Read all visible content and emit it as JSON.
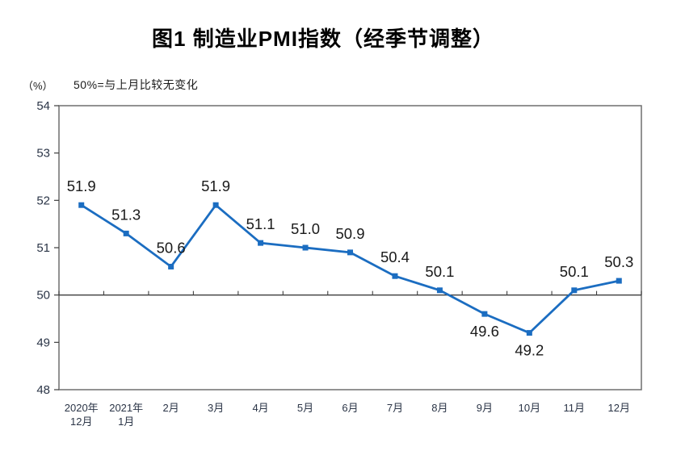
{
  "chart_data": {
    "type": "line",
    "title": "图1 制造业PMI指数（经季节调整）",
    "unit_label": "（%）",
    "subtitle": "50%=与上月比较无变化",
    "categories": [
      [
        "2020年",
        "12月"
      ],
      [
        "2021年",
        "1月"
      ],
      [
        "2月"
      ],
      [
        "3月"
      ],
      [
        "4月"
      ],
      [
        "5月"
      ],
      [
        "6月"
      ],
      [
        "7月"
      ],
      [
        "8月"
      ],
      [
        "9月"
      ],
      [
        "10月"
      ],
      [
        "11月"
      ],
      [
        "12月"
      ]
    ],
    "values": [
      51.9,
      51.3,
      50.6,
      51.9,
      51.1,
      51.0,
      50.9,
      50.4,
      50.1,
      49.6,
      49.2,
      50.1,
      50.3
    ],
    "labels": [
      "51.9",
      "51.3",
      "50.6",
      "51.9",
      "51.1",
      "51.0",
      "50.9",
      "50.4",
      "50.1",
      "49.6",
      "49.2",
      "50.1",
      "50.3"
    ],
    "label_positions": [
      "above",
      "above",
      "above",
      "above",
      "above",
      "above",
      "above",
      "above",
      "above",
      "below",
      "below",
      "above",
      "above"
    ],
    "ylim": [
      48,
      54
    ],
    "yticks": [
      54,
      53,
      52,
      51,
      50,
      49,
      48
    ],
    "reference_value": 50,
    "grid": "off",
    "legend": "none",
    "marker": "square",
    "colors": {
      "line": "#1b6dc1",
      "plot_border": "#6e6e6e",
      "reference_line": "#3d3d3d",
      "tick": "#3d3d3d",
      "axis_text": "#2b3547",
      "data_label": "#1a1a1a",
      "title_text": "#000000"
    }
  }
}
